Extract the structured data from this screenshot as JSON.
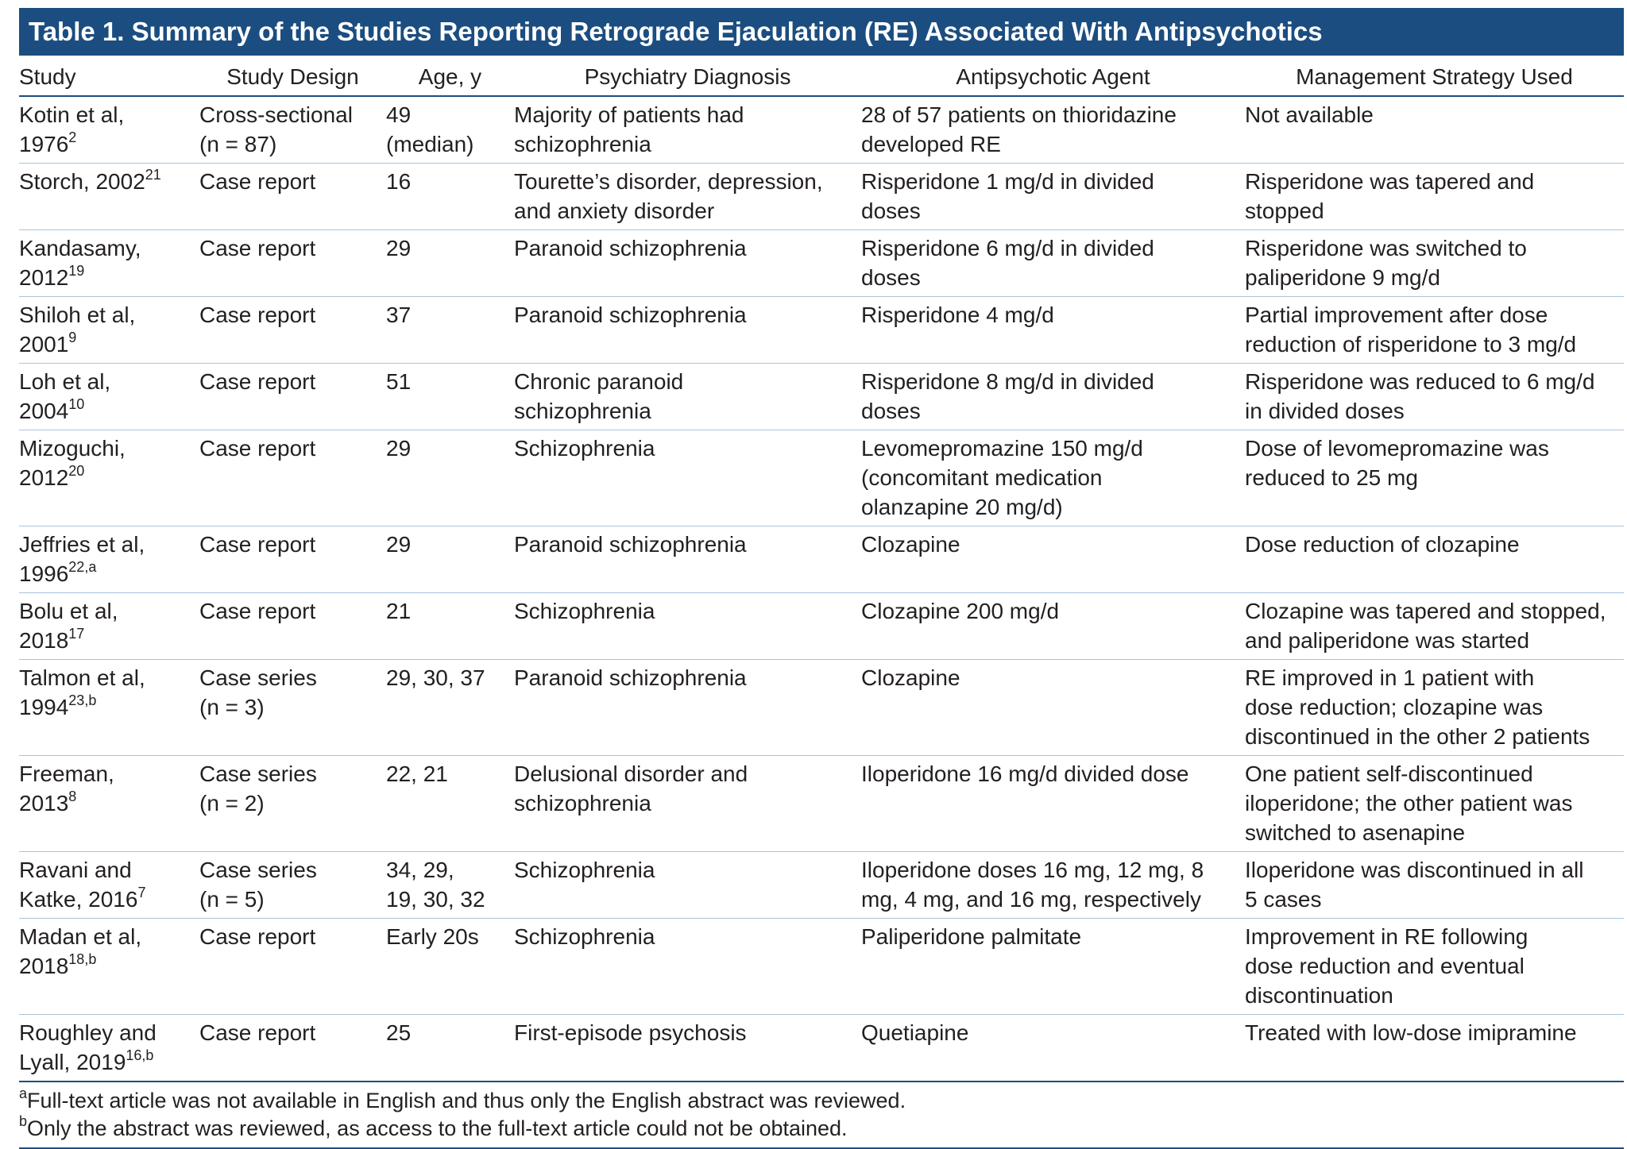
{
  "table": {
    "title": "Table 1. Summary of the Studies Reporting Retrograde Ejaculation (RE) Associated With Antipsychotics",
    "columns": [
      "Study",
      "Study Design",
      "Age, y",
      "Psychiatry Diagnosis",
      "Antipsychotic Agent",
      "Management Strategy Used"
    ],
    "rows": [
      [
        {
          "lines": [
            "Kotin et al,",
            "1976"
          ],
          "ref": "2"
        },
        [
          "Cross-sectional",
          "(n = 87)"
        ],
        [
          "49",
          "(median)"
        ],
        [
          "Majority of patients had",
          "schizophrenia"
        ],
        [
          "28 of 57 patients on thioridazine",
          "developed RE"
        ],
        [
          "Not available"
        ]
      ],
      [
        {
          "lines": [
            "Storch, 2002"
          ],
          "ref": "21"
        },
        [
          "Case report"
        ],
        [
          "16"
        ],
        [
          "Tourette’s disorder, depression,",
          "and anxiety disorder"
        ],
        [
          "Risperidone 1 mg/d in divided",
          "doses"
        ],
        [
          "Risperidone was tapered and",
          "stopped"
        ]
      ],
      [
        {
          "lines": [
            "Kandasamy,",
            "2012"
          ],
          "ref": "19"
        },
        [
          "Case report"
        ],
        [
          "29"
        ],
        [
          "Paranoid schizophrenia"
        ],
        [
          "Risperidone 6 mg/d in divided",
          "doses"
        ],
        [
          "Risperidone was switched to",
          "paliperidone 9 mg/d"
        ]
      ],
      [
        {
          "lines": [
            "Shiloh et al,",
            "2001"
          ],
          "ref": "9"
        },
        [
          "Case report"
        ],
        [
          "37"
        ],
        [
          "Paranoid schizophrenia"
        ],
        [
          "Risperidone 4 mg/d"
        ],
        [
          "Partial improvement after dose",
          "reduction of risperidone to 3 mg/d"
        ]
      ],
      [
        {
          "lines": [
            "Loh et al,",
            "2004"
          ],
          "ref": "10"
        },
        [
          "Case report"
        ],
        [
          "51"
        ],
        [
          "Chronic paranoid",
          "schizophrenia"
        ],
        [
          "Risperidone 8 mg/d in divided",
          "doses"
        ],
        [
          "Risperidone was reduced to 6 mg/d",
          "in divided doses"
        ]
      ],
      [
        {
          "lines": [
            "Mizoguchi,",
            "2012"
          ],
          "ref": "20"
        },
        [
          "Case report"
        ],
        [
          "29"
        ],
        [
          "Schizophrenia"
        ],
        [
          "Levomepromazine 150 mg/d",
          "(concomitant medication",
          "olanzapine 20 mg/d)"
        ],
        [
          "Dose of levomepromazine was",
          "reduced to 25 mg"
        ]
      ],
      [
        {
          "lines": [
            "Jeffries et al,",
            "1996"
          ],
          "ref": "22,a"
        },
        [
          "Case report"
        ],
        [
          "29"
        ],
        [
          "Paranoid schizophrenia"
        ],
        [
          "Clozapine"
        ],
        [
          "Dose reduction of clozapine"
        ]
      ],
      [
        {
          "lines": [
            "Bolu et al,",
            "2018"
          ],
          "ref": "17"
        },
        [
          "Case report"
        ],
        [
          "21"
        ],
        [
          "Schizophrenia"
        ],
        [
          "Clozapine 200 mg/d"
        ],
        [
          "Clozapine was tapered and stopped,",
          "and paliperidone was started"
        ]
      ],
      [
        {
          "lines": [
            "Talmon et al,",
            "1994"
          ],
          "ref": "23,b"
        },
        [
          "Case series",
          "(n = 3)"
        ],
        [
          "29, 30, 37"
        ],
        [
          "Paranoid schizophrenia"
        ],
        [
          "Clozapine"
        ],
        [
          "RE improved in 1 patient with",
          "dose reduction; clozapine was",
          "discontinued in the other 2 patients"
        ]
      ],
      [
        {
          "lines": [
            "Freeman,",
            "2013"
          ],
          "ref": "8"
        },
        [
          "Case series",
          "(n = 2)"
        ],
        [
          "22, 21"
        ],
        [
          "Delusional disorder and",
          "schizophrenia"
        ],
        [
          "Iloperidone 16 mg/d divided dose"
        ],
        [
          "One patient self-discontinued",
          "iloperidone; the other patient was",
          "switched to asenapine"
        ]
      ],
      [
        {
          "lines": [
            "Ravani and",
            "Katke, 2016"
          ],
          "ref": "7"
        },
        [
          "Case series",
          "(n = 5)"
        ],
        [
          "34, 29,",
          "19, 30, 32"
        ],
        [
          "Schizophrenia"
        ],
        [
          "Iloperidone doses 16 mg, 12 mg, 8",
          "mg, 4 mg, and 16 mg, respectively"
        ],
        [
          "Iloperidone was discontinued in all",
          "5 cases"
        ]
      ],
      [
        {
          "lines": [
            "Madan et al,",
            "2018"
          ],
          "ref": "18,b"
        },
        [
          "Case report"
        ],
        [
          "Early 20s"
        ],
        [
          "Schizophrenia"
        ],
        [
          "Paliperidone palmitate"
        ],
        [
          "Improvement in RE following",
          "dose reduction and eventual",
          "discontinuation"
        ]
      ],
      [
        {
          "lines": [
            "Roughley and",
            "Lyall, 2019"
          ],
          "ref": "16,b"
        },
        [
          "Case report"
        ],
        [
          "25"
        ],
        [
          "First-episode psychosis"
        ],
        [
          "Quetiapine"
        ],
        [
          "Treated with low-dose imipramine"
        ]
      ]
    ],
    "footnotes": [
      {
        "mark": "a",
        "text": "Full-text article was not available in English and thus only the English abstract was reviewed."
      },
      {
        "mark": "b",
        "text": "Only the abstract was reviewed, as access to the full-text article could not be obtained."
      }
    ]
  }
}
